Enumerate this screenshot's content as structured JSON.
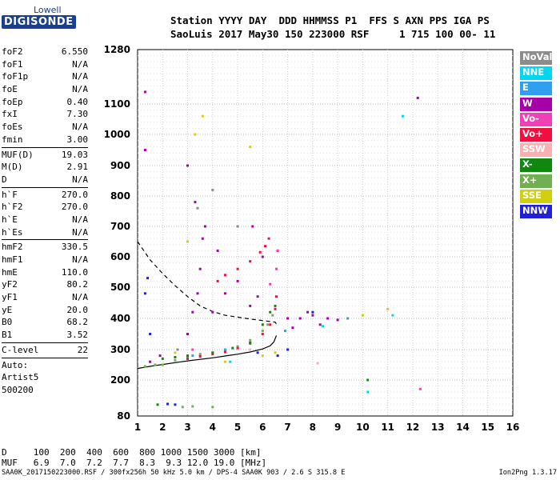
{
  "logo": {
    "line1": "Lowell",
    "line2": "DIGISONDE"
  },
  "header": {
    "line1": "Station YYYY DAY  DDD HHMMSS P1  FFS S AXN PPS IGA PS",
    "line2": "SaoLuis 2017 May30 150 223000 RSF     1 715 100 00- 11"
  },
  "params": [
    {
      "label": "foF2",
      "value": "6.550"
    },
    {
      "label": "foF1",
      "value": "N/A"
    },
    {
      "label": "foF1p",
      "value": "N/A"
    },
    {
      "label": "foE",
      "value": "N/A"
    },
    {
      "label": "foEp",
      "value": "0.40"
    },
    {
      "label": "fxI",
      "value": "7.30"
    },
    {
      "label": "foEs",
      "value": "N/A"
    },
    {
      "label": "fmin",
      "value": "3.00"
    },
    {
      "sep": true
    },
    {
      "label": "MUF(D)",
      "value": "19.03"
    },
    {
      "label": "M(D)",
      "value": "2.91"
    },
    {
      "label": "D",
      "value": "N/A"
    },
    {
      "sep": true
    },
    {
      "label": "h`F",
      "value": "270.0"
    },
    {
      "label": "h`F2",
      "value": "270.0"
    },
    {
      "label": "h`E",
      "value": "N/A"
    },
    {
      "label": "h`Es",
      "value": "N/A"
    },
    {
      "sep": true
    },
    {
      "label": "hmF2",
      "value": "330.5"
    },
    {
      "label": "hmF1",
      "value": "N/A"
    },
    {
      "label": "hmE",
      "value": "110.0"
    },
    {
      "label": "yF2",
      "value": "80.2"
    },
    {
      "label": "yF1",
      "value": "N/A"
    },
    {
      "label": "yE",
      "value": "20.0"
    },
    {
      "label": "B0",
      "value": "68.2"
    },
    {
      "label": "B1",
      "value": "3.52"
    },
    {
      "sep": true
    },
    {
      "label": "C-level",
      "value": "22"
    },
    {
      "sep": true
    },
    {
      "text": "Auto:"
    },
    {
      "text": "Artist5"
    },
    {
      "text": "500200"
    }
  ],
  "legend": [
    {
      "label": "NoVal",
      "color": "#8c8c8c"
    },
    {
      "label": "NNE",
      "color": "#00d8f0"
    },
    {
      "label": "E",
      "color": "#2fa0f0"
    },
    {
      "label": "W",
      "color": "#a800a8"
    },
    {
      "label": "Vo-",
      "color": "#f040b8"
    },
    {
      "label": "Vo+",
      "color": "#f01040"
    },
    {
      "label": "SSW",
      "color": "#f8b0b0"
    },
    {
      "label": "X-",
      "color": "#108810"
    },
    {
      "label": "X+",
      "color": "#70b050"
    },
    {
      "label": "SSE",
      "color": "#d0d010"
    },
    {
      "label": "NNW",
      "color": "#2020d8"
    }
  ],
  "footer": {
    "line1": "D     100  200  400  600  800 1000 1500 3000 [km]",
    "line2": "MUF   6.9  7.0  7.2  7.7  8.3  9.3 12.0 19.0 [MHz]",
    "left": "SAA0K_2017150223000.RSF / 300fx256h 50 kHz 5.0 km / DPS-4 SAA0K 903 / 2.6 S 315.8 E",
    "right": "Ion2Png 1.3.17"
  },
  "chart_data": {
    "type": "scatter",
    "title": "",
    "xlabel": "",
    "ylabel": "",
    "xlim": [
      1,
      16
    ],
    "ylim": [
      80,
      1280
    ],
    "x_ticks": [
      1,
      2,
      3,
      4,
      5,
      6,
      7,
      8,
      9,
      10,
      11,
      12,
      13,
      14,
      15,
      16
    ],
    "y_ticks": [
      80,
      200,
      300,
      400,
      500,
      600,
      700,
      800,
      900,
      1000,
      1100,
      1280
    ],
    "grid": true,
    "legend_position": "right",
    "series": [
      {
        "name": "X+",
        "color": "#70b050",
        "points": [
          [
            1.3,
            245
          ],
          [
            1.7,
            250
          ],
          [
            2.0,
            250
          ],
          [
            2.5,
            265
          ],
          [
            3.0,
            275
          ],
          [
            3.5,
            285
          ],
          [
            4.0,
            290
          ],
          [
            4.5,
            298
          ],
          [
            5.0,
            310
          ],
          [
            5.5,
            330
          ],
          [
            6.0,
            360
          ],
          [
            6.2,
            380
          ],
          [
            6.4,
            410
          ],
          [
            2.8,
            110
          ],
          [
            3.2,
            112
          ],
          [
            4.0,
            110
          ]
        ]
      },
      {
        "name": "Vo+",
        "color": "#f01040",
        "points": [
          [
            3.0,
            270
          ],
          [
            3.5,
            278
          ],
          [
            4.0,
            285
          ],
          [
            4.5,
            292
          ],
          [
            5.0,
            305
          ],
          [
            5.5,
            322
          ],
          [
            6.0,
            350
          ],
          [
            6.3,
            380
          ],
          [
            6.5,
            430
          ],
          [
            6.55,
            470
          ],
          [
            4.2,
            520
          ],
          [
            4.5,
            540
          ],
          [
            5.0,
            560
          ],
          [
            5.5,
            585
          ],
          [
            5.9,
            615
          ],
          [
            6.1,
            635
          ],
          [
            6.25,
            660
          ]
        ]
      },
      {
        "name": "W",
        "color": "#a800a8",
        "points": [
          [
            3.0,
            350
          ],
          [
            3.2,
            420
          ],
          [
            3.4,
            480
          ],
          [
            3.5,
            560
          ],
          [
            3.6,
            660
          ],
          [
            3.7,
            700
          ],
          [
            4.0,
            420
          ],
          [
            4.2,
            620
          ],
          [
            4.5,
            480
          ],
          [
            5.0,
            520
          ],
          [
            5.5,
            440
          ],
          [
            5.6,
            700
          ],
          [
            5.8,
            470
          ],
          [
            6.0,
            600
          ],
          [
            6.6,
            620
          ],
          [
            7.0,
            400
          ],
          [
            7.2,
            370
          ],
          [
            7.5,
            400
          ],
          [
            7.8,
            420
          ],
          [
            8.0,
            410
          ],
          [
            8.3,
            380
          ],
          [
            8.6,
            400
          ],
          [
            9.0,
            395
          ],
          [
            3.3,
            780
          ],
          [
            3.0,
            900
          ],
          [
            1.3,
            950
          ],
          [
            1.3,
            1140
          ],
          [
            12.2,
            1120
          ],
          [
            1.5,
            260
          ],
          [
            1.9,
            280
          ]
        ]
      },
      {
        "name": "X-",
        "color": "#108810",
        "points": [
          [
            2.0,
            270
          ],
          [
            2.5,
            275
          ],
          [
            3.0,
            280
          ],
          [
            4.0,
            290
          ],
          [
            4.8,
            305
          ],
          [
            5.5,
            320
          ],
          [
            6.0,
            380
          ],
          [
            6.3,
            420
          ],
          [
            6.5,
            440
          ],
          [
            10.2,
            200
          ],
          [
            1.8,
            118
          ]
        ]
      },
      {
        "name": "SSE",
        "color": "#d0d010",
        "points": [
          [
            3.0,
            650
          ],
          [
            3.3,
            1000
          ],
          [
            3.6,
            1060
          ],
          [
            5.5,
            960
          ],
          [
            6.0,
            280
          ],
          [
            6.5,
            290
          ],
          [
            10.0,
            410
          ],
          [
            11.0,
            430
          ],
          [
            4.5,
            260
          ],
          [
            2.5,
            290
          ]
        ]
      },
      {
        "name": "NNW",
        "color": "#2020d8",
        "points": [
          [
            1.3,
            480
          ],
          [
            1.5,
            350
          ],
          [
            1.4,
            530
          ],
          [
            5.8,
            290
          ],
          [
            6.6,
            280
          ],
          [
            7.0,
            300
          ],
          [
            2.2,
            120
          ],
          [
            2.5,
            118
          ],
          [
            8.0,
            420
          ]
        ]
      },
      {
        "name": "NNE",
        "color": "#00d8f0",
        "points": [
          [
            11.6,
            1060
          ],
          [
            10.2,
            160
          ],
          [
            8.4,
            375
          ],
          [
            11.2,
            410
          ],
          [
            4.7,
            260
          ]
        ]
      },
      {
        "name": "E",
        "color": "#2fa0f0",
        "points": [
          [
            3.2,
            280
          ],
          [
            4.5,
            300
          ],
          [
            6.9,
            360
          ],
          [
            9.4,
            400
          ]
        ]
      },
      {
        "name": "Vo-",
        "color": "#f040b8",
        "points": [
          [
            6.55,
            560
          ],
          [
            6.6,
            620
          ],
          [
            6.3,
            510
          ],
          [
            3.2,
            300
          ],
          [
            12.3,
            170
          ]
        ]
      },
      {
        "name": "SSW",
        "color": "#f8b0b0",
        "points": [
          [
            8.2,
            255
          ],
          [
            5.5,
            300
          ]
        ]
      },
      {
        "name": "NoVal",
        "color": "#8c8c8c",
        "points": [
          [
            3.4,
            760
          ],
          [
            4.0,
            820
          ],
          [
            5.0,
            700
          ],
          [
            2.6,
            300
          ]
        ]
      }
    ],
    "curves": [
      {
        "name": "profile-dashed",
        "style": "dashed",
        "points": [
          [
            1,
            650
          ],
          [
            1.5,
            590
          ],
          [
            2,
            545
          ],
          [
            2.5,
            505
          ],
          [
            3,
            470
          ],
          [
            3.5,
            440
          ],
          [
            4,
            422
          ],
          [
            4.5,
            410
          ],
          [
            5,
            404
          ],
          [
            5.5,
            398
          ],
          [
            6,
            393
          ],
          [
            6.5,
            388
          ],
          [
            6.55,
            382
          ]
        ]
      },
      {
        "name": "profile-solid",
        "style": "solid",
        "points": [
          [
            1,
            238
          ],
          [
            1.5,
            245
          ],
          [
            2,
            251
          ],
          [
            2.5,
            257
          ],
          [
            3,
            263
          ],
          [
            3.5,
            268
          ],
          [
            4,
            273
          ],
          [
            4.5,
            279
          ],
          [
            5,
            285
          ],
          [
            5.5,
            292
          ],
          [
            6,
            302
          ],
          [
            6.3,
            312
          ],
          [
            6.45,
            325
          ],
          [
            6.55,
            345
          ]
        ]
      }
    ]
  }
}
